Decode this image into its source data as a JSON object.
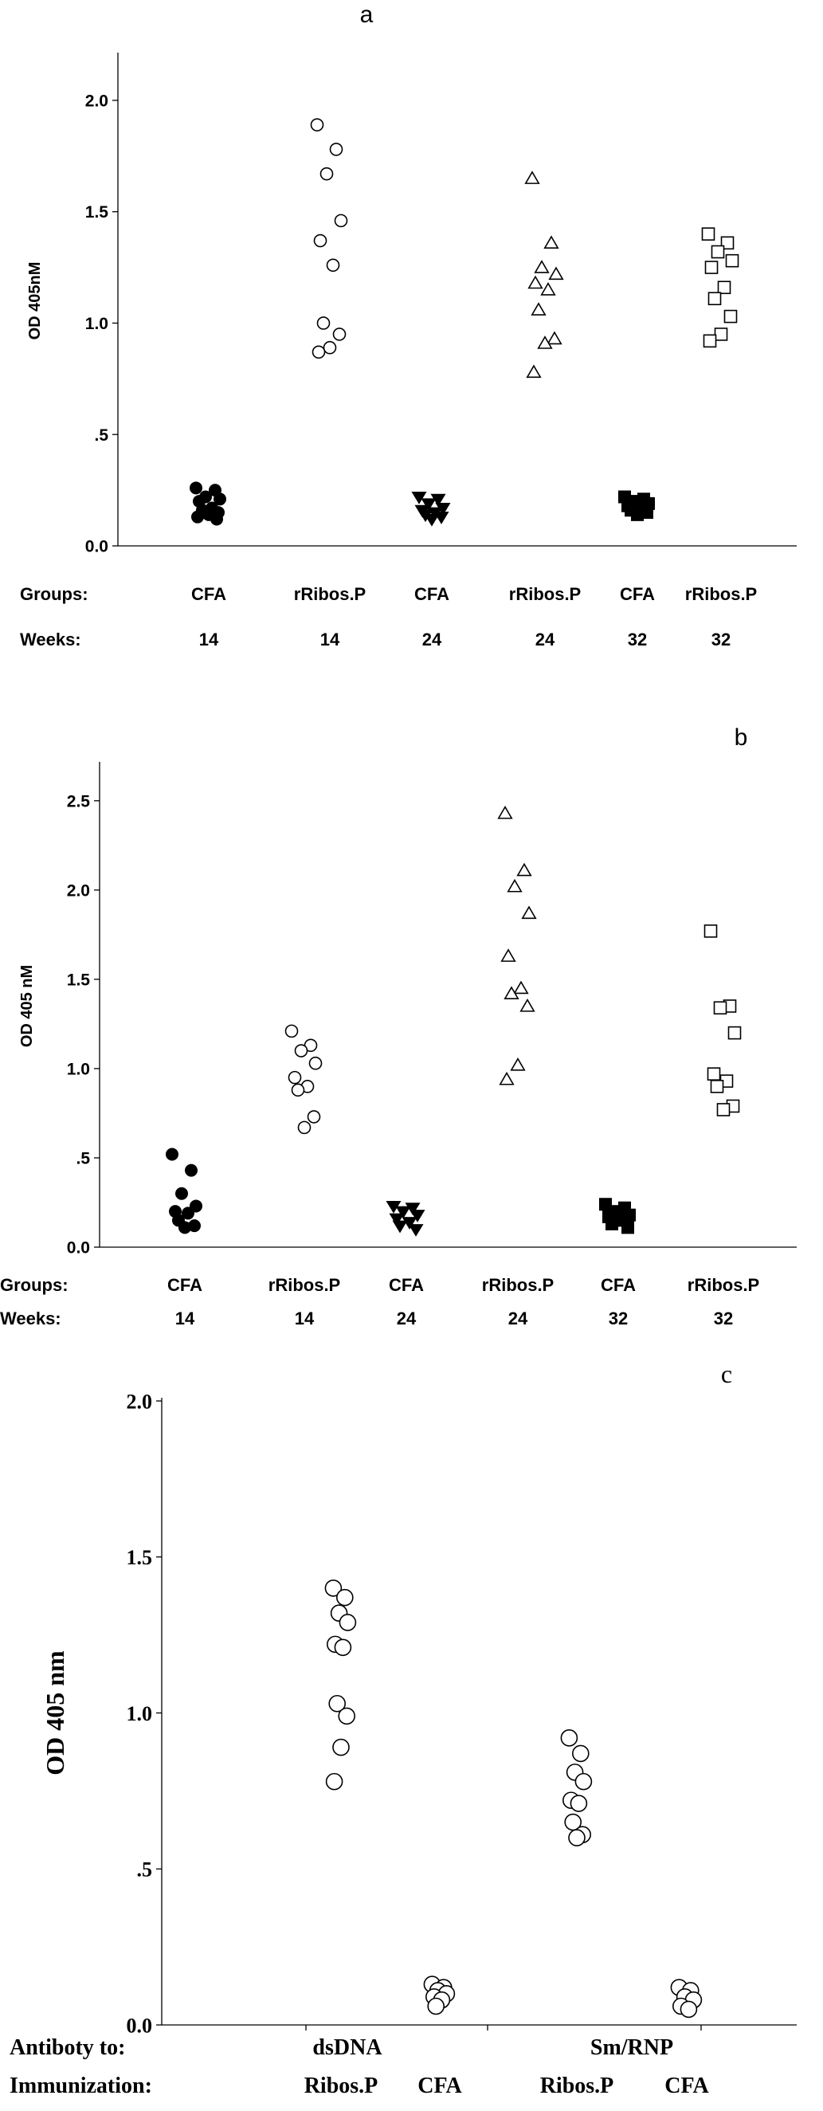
{
  "chart_data": [
    {
      "panel_label": "a",
      "type": "scatter",
      "ylabel": "OD 405nM",
      "ylim": [
        0,
        2.2
      ],
      "yticks": [
        {
          "value": 0,
          "label": "0.0"
        },
        {
          "value": 0.5,
          "label": ".5"
        },
        {
          "value": 1.0,
          "label": "1.0"
        },
        {
          "value": 1.5,
          "label": "1.5"
        },
        {
          "value": 2.0,
          "label": "2.0"
        }
      ],
      "row_headers": [
        "Groups:",
        "Weeks:"
      ],
      "groups": [
        {
          "group": "CFA",
          "week": "14",
          "marker": "circle-filled",
          "values": [
            0.26,
            0.25,
            0.22,
            0.21,
            0.2,
            0.17,
            0.16,
            0.15,
            0.14,
            0.13,
            0.12
          ]
        },
        {
          "group": "rRibos.P",
          "week": "14",
          "marker": "circle-open",
          "values": [
            1.89,
            1.78,
            1.67,
            1.46,
            1.37,
            1.26,
            1.0,
            0.95,
            0.89,
            0.87
          ]
        },
        {
          "group": "CFA",
          "week": "24",
          "marker": "triangle-down-filled",
          "values": [
            0.22,
            0.21,
            0.19,
            0.17,
            0.16,
            0.15,
            0.14,
            0.13,
            0.12
          ]
        },
        {
          "group": "rRibos.P",
          "week": "24",
          "marker": "triangle-open",
          "values": [
            1.65,
            1.36,
            1.25,
            1.22,
            1.18,
            1.15,
            1.06,
            0.93,
            0.91,
            0.78
          ]
        },
        {
          "group": "CFA",
          "week": "32",
          "marker": "square-filled",
          "values": [
            0.22,
            0.21,
            0.2,
            0.19,
            0.18,
            0.17,
            0.16,
            0.15,
            0.14
          ]
        },
        {
          "group": "rRibos.P",
          "week": "32",
          "marker": "square-open",
          "values": [
            1.4,
            1.36,
            1.32,
            1.28,
            1.25,
            1.16,
            1.11,
            1.03,
            0.95,
            0.92
          ]
        }
      ]
    },
    {
      "panel_label": "b",
      "type": "scatter",
      "ylabel": "OD 405 nM",
      "ylim": [
        0,
        2.7
      ],
      "yticks": [
        {
          "value": 0,
          "label": "0.0"
        },
        {
          "value": 0.5,
          "label": ".5"
        },
        {
          "value": 1.0,
          "label": "1.0"
        },
        {
          "value": 1.5,
          "label": "1.5"
        },
        {
          "value": 2.0,
          "label": "2.0"
        },
        {
          "value": 2.5,
          "label": "2.5"
        }
      ],
      "row_headers": [
        "Groups:",
        "Weeks:"
      ],
      "groups": [
        {
          "group": "CFA",
          "week": "14",
          "marker": "circle-filled",
          "values": [
            0.52,
            0.43,
            0.3,
            0.23,
            0.2,
            0.19,
            0.15,
            0.12,
            0.11
          ]
        },
        {
          "group": "rRibos.P",
          "week": "14",
          "marker": "circle-open",
          "values": [
            1.21,
            1.13,
            1.1,
            1.03,
            0.95,
            0.9,
            0.88,
            0.73,
            0.67
          ]
        },
        {
          "group": "CFA",
          "week": "24",
          "marker": "triangle-down-filled",
          "values": [
            0.23,
            0.22,
            0.2,
            0.18,
            0.16,
            0.14,
            0.12,
            0.1
          ]
        },
        {
          "group": "rRibos.P",
          "week": "24",
          "marker": "triangle-open",
          "values": [
            2.43,
            2.11,
            2.02,
            1.87,
            1.63,
            1.45,
            1.42,
            1.35,
            1.02,
            0.94
          ]
        },
        {
          "group": "CFA",
          "week": "32",
          "marker": "square-filled",
          "values": [
            0.24,
            0.22,
            0.2,
            0.18,
            0.17,
            0.15,
            0.13,
            0.11
          ]
        },
        {
          "group": "rRibos.P",
          "week": "32",
          "marker": "square-open",
          "values": [
            1.77,
            1.35,
            1.34,
            1.2,
            0.97,
            0.93,
            0.9,
            0.79,
            0.77
          ]
        }
      ]
    },
    {
      "panel_label": "c",
      "type": "scatter",
      "ylabel": "OD 405 nm",
      "ylim": [
        0,
        2.0
      ],
      "yticks": [
        {
          "value": 0,
          "label": "0.0"
        },
        {
          "value": 0.5,
          "label": ".5"
        },
        {
          "value": 1.0,
          "label": "1.0"
        },
        {
          "value": 1.5,
          "label": "1.5"
        },
        {
          "value": 2.0,
          "label": "2.0"
        }
      ],
      "row_headers": [
        "Antiboty to:",
        "Immunization:"
      ],
      "antibody_labels": [
        "dsDNA",
        "Sm/RNP"
      ],
      "groups": [
        {
          "antibody": "dsDNA",
          "immunization": "Ribos.P",
          "marker": "circle-open",
          "values": [
            1.4,
            1.37,
            1.32,
            1.29,
            1.22,
            1.21,
            1.03,
            0.99,
            0.89,
            0.78
          ]
        },
        {
          "antibody": "dsDNA",
          "immunization": "CFA",
          "marker": "circle-open",
          "values": [
            0.13,
            0.12,
            0.11,
            0.1,
            0.09,
            0.08,
            0.06
          ]
        },
        {
          "antibody": "Sm/RNP",
          "immunization": "Ribos.P",
          "marker": "circle-open",
          "values": [
            0.92,
            0.87,
            0.81,
            0.78,
            0.72,
            0.71,
            0.65,
            0.61,
            0.6
          ]
        },
        {
          "antibody": "Sm/RNP",
          "immunization": "CFA",
          "marker": "circle-open",
          "values": [
            0.12,
            0.11,
            0.09,
            0.08,
            0.06,
            0.05
          ]
        }
      ]
    }
  ]
}
